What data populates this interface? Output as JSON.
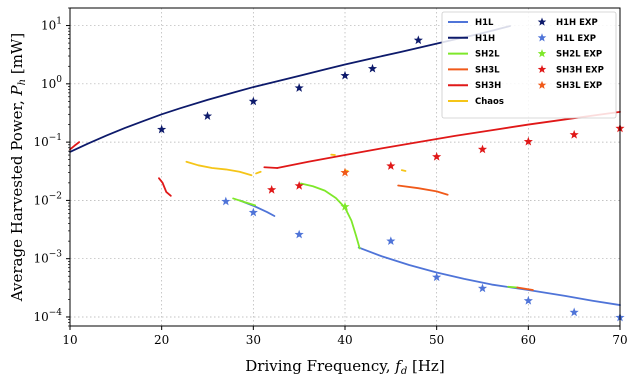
{
  "chart_data": {
    "type": "line",
    "title": "",
    "xlabel": "Driving Frequency, f_d [Hz]",
    "ylabel": "Average Harvested Power, P_h [mW]",
    "xlabel_parts": {
      "main": "Driving Frequency, ",
      "sym": "f",
      "sub": "d",
      "unit": " [Hz]"
    },
    "ylabel_parts": {
      "main": "Average Harvested Power, ",
      "sym": "P",
      "sub": "h",
      "unit": " [mW]"
    },
    "xlim": [
      10,
      70
    ],
    "ylim": [
      7e-05,
      20
    ],
    "yscale": "log",
    "grid": true,
    "legend_position": "top-right",
    "x_ticks": [
      10,
      20,
      30,
      40,
      50,
      60,
      70
    ],
    "x_tick_labels": [
      "10",
      "20",
      "30",
      "40",
      "50",
      "60",
      "70"
    ],
    "y_ticks": [
      0.0001,
      0.001,
      0.01,
      0.1,
      1,
      10
    ],
    "y_tick_labels": [
      {
        "base": "10",
        "exp": "−4"
      },
      {
        "base": "10",
        "exp": "−3"
      },
      {
        "base": "10",
        "exp": "−2"
      },
      {
        "base": "10",
        "exp": "−1"
      },
      {
        "base": "10",
        "exp": "0"
      },
      {
        "base": "10",
        "exp": "1"
      }
    ],
    "series": [
      {
        "name": "H1L",
        "kind": "line",
        "color": "#4f74d8",
        "points": [
          [
            41.5,
            0.00155
          ],
          [
            44,
            0.0011
          ],
          [
            47,
            0.00078
          ],
          [
            50,
            0.00058
          ],
          [
            53,
            0.00045
          ],
          [
            56,
            0.00036
          ],
          [
            60,
            0.00029
          ],
          [
            64,
            0.00023
          ],
          [
            67,
            0.00019
          ],
          [
            70,
            0.00016
          ]
        ]
      },
      {
        "name": "H1L",
        "kind": "line-segment",
        "color": "#4f74d8",
        "points": [
          [
            28.5,
            0.01
          ],
          [
            30,
            0.0081
          ],
          [
            31.5,
            0.0063
          ],
          [
            32.3,
            0.0054
          ]
        ]
      },
      {
        "name": "H1H",
        "kind": "line",
        "color": "#0d1a6b",
        "points": [
          [
            10,
            0.068
          ],
          [
            12,
            0.095
          ],
          [
            14,
            0.13
          ],
          [
            16,
            0.175
          ],
          [
            18,
            0.23
          ],
          [
            20,
            0.3
          ],
          [
            22,
            0.38
          ],
          [
            25,
            0.53
          ],
          [
            28,
            0.72
          ],
          [
            30,
            0.88
          ],
          [
            32,
            1.05
          ],
          [
            35,
            1.37
          ],
          [
            38,
            1.8
          ],
          [
            40,
            2.15
          ],
          [
            43,
            2.75
          ],
          [
            46,
            3.5
          ],
          [
            49,
            4.5
          ],
          [
            52,
            5.8
          ],
          [
            55,
            7.4
          ],
          [
            58,
            9.8
          ]
        ]
      },
      {
        "name": "SH2L",
        "kind": "line",
        "color": "#7ee82a",
        "points": [
          [
            35.2,
            0.0195
          ],
          [
            36.5,
            0.0175
          ],
          [
            37.8,
            0.0147
          ],
          [
            39,
            0.011
          ],
          [
            40,
            0.0075
          ],
          [
            40.7,
            0.0045
          ],
          [
            41.2,
            0.0025
          ],
          [
            41.6,
            0.0015
          ]
        ]
      },
      {
        "name": "SH2L",
        "kind": "line-segment",
        "color": "#7ee82a",
        "points": [
          [
            27.8,
            0.0108
          ],
          [
            29,
            0.0094
          ],
          [
            30.2,
            0.0082
          ]
        ]
      },
      {
        "name": "SH2L",
        "kind": "line-segment",
        "color": "#7ee82a",
        "points": [
          [
            57.8,
            0.00033
          ],
          [
            58.8,
            0.00032
          ]
        ]
      },
      {
        "name": "SH3L",
        "kind": "line-segment",
        "color": "#f05a1a",
        "points": [
          [
            45.8,
            0.018
          ],
          [
            48,
            0.0162
          ],
          [
            50,
            0.0143
          ],
          [
            51.2,
            0.0125
          ]
        ]
      },
      {
        "name": "SH3L",
        "kind": "line-segment",
        "color": "#f05a1a",
        "points": [
          [
            58.8,
            0.00032
          ],
          [
            60.5,
            0.00029
          ]
        ]
      },
      {
        "name": "SH3H",
        "kind": "line",
        "color": "#e01818",
        "points": [
          [
            32.6,
            0.036
          ],
          [
            36,
            0.046
          ],
          [
            40,
            0.06
          ],
          [
            44,
            0.078
          ],
          [
            48,
            0.1
          ],
          [
            52,
            0.128
          ],
          [
            56,
            0.16
          ],
          [
            60,
            0.2
          ],
          [
            64,
            0.245
          ],
          [
            67,
            0.285
          ],
          [
            70,
            0.33
          ]
        ]
      },
      {
        "name": "SH3H",
        "kind": "line-segment",
        "color": "#e01818",
        "points": [
          [
            31.2,
            0.037
          ],
          [
            32.6,
            0.036
          ]
        ]
      },
      {
        "name": "SH3H",
        "kind": "line-segment",
        "color": "#e01818",
        "points": [
          [
            19.7,
            0.024
          ],
          [
            20.1,
            0.02
          ],
          [
            20.5,
            0.014
          ],
          [
            21,
            0.012
          ]
        ]
      },
      {
        "name": "SH3H",
        "kind": "line-segment",
        "color": "#e01818",
        "points": [
          [
            10,
            0.075
          ],
          [
            10.5,
            0.087
          ],
          [
            11,
            0.1
          ]
        ]
      },
      {
        "name": "Chaos",
        "kind": "line",
        "color": "#f5c518",
        "points": [
          [
            22.7,
            0.046
          ],
          [
            24,
            0.04
          ],
          [
            25.5,
            0.036
          ],
          [
            27,
            0.034
          ],
          [
            28.5,
            0.031
          ],
          [
            29.8,
            0.027
          ]
        ]
      },
      {
        "name": "Chaos",
        "kind": "line-segment",
        "color": "#f5c518",
        "points": [
          [
            30.3,
            0.029
          ],
          [
            30.8,
            0.031
          ]
        ]
      },
      {
        "name": "Chaos",
        "kind": "line-segment",
        "color": "#f5c518",
        "points": [
          [
            38.5,
            0.061
          ],
          [
            38.9,
            0.06
          ]
        ]
      },
      {
        "name": "Chaos",
        "kind": "line-segment",
        "color": "#f5c518",
        "points": [
          [
            40,
            0.033
          ],
          [
            40.3,
            0.032
          ]
        ]
      },
      {
        "name": "Chaos",
        "kind": "line-segment",
        "color": "#f5c518",
        "points": [
          [
            46.2,
            0.033
          ],
          [
            46.6,
            0.032
          ]
        ]
      },
      {
        "name": "H1H EXP",
        "kind": "star",
        "color": "#0d1a6b",
        "points": [
          [
            20,
            0.165
          ],
          [
            25,
            0.28
          ],
          [
            30,
            0.5
          ],
          [
            35,
            0.85
          ],
          [
            40,
            1.38
          ],
          [
            43,
            1.82
          ],
          [
            48,
            5.6
          ]
        ]
      },
      {
        "name": "H1L EXP",
        "kind": "star",
        "color": "#4f74d8",
        "points": [
          [
            27,
            0.0096
          ],
          [
            30,
            0.0062
          ],
          [
            35,
            0.0026
          ],
          [
            45,
            0.002
          ],
          [
            50,
            0.00048
          ],
          [
            55,
            0.00031
          ],
          [
            60,
            0.00019
          ],
          [
            65,
            0.00012
          ],
          [
            70,
            9.8e-05
          ]
        ]
      },
      {
        "name": "SH2L EXP",
        "kind": "star",
        "color": "#7ee82a",
        "points": [
          [
            40,
            0.0078
          ]
        ]
      },
      {
        "name": "SH3H EXP",
        "kind": "star",
        "color": "#e01818",
        "points": [
          [
            32,
            0.0152
          ],
          [
            35,
            0.0178
          ],
          [
            45,
            0.039
          ],
          [
            50,
            0.056
          ],
          [
            55,
            0.075
          ],
          [
            60,
            0.102
          ],
          [
            65,
            0.134
          ],
          [
            70,
            0.172
          ]
        ]
      },
      {
        "name": "SH3L EXP",
        "kind": "star",
        "color": "#f05a1a",
        "points": [
          [
            40,
            0.03
          ]
        ]
      }
    ],
    "legend": {
      "col1": [
        {
          "label": "H1L",
          "color": "#4f74d8",
          "kind": "line"
        },
        {
          "label": "H1H",
          "color": "#0d1a6b",
          "kind": "line"
        },
        {
          "label": "SH2L",
          "color": "#7ee82a",
          "kind": "line"
        },
        {
          "label": "SH3L",
          "color": "#f05a1a",
          "kind": "line"
        },
        {
          "label": "SH3H",
          "color": "#e01818",
          "kind": "line"
        },
        {
          "label": "Chaos",
          "color": "#f5c518",
          "kind": "line"
        }
      ],
      "col2": [
        {
          "label": "H1H EXP",
          "color": "#0d1a6b",
          "kind": "star"
        },
        {
          "label": "H1L EXP",
          "color": "#4f74d8",
          "kind": "star"
        },
        {
          "label": "SH2L EXP",
          "color": "#7ee82a",
          "kind": "star"
        },
        {
          "label": "SH3H EXP",
          "color": "#e01818",
          "kind": "star"
        },
        {
          "label": "SH3L EXP",
          "color": "#f05a1a",
          "kind": "star"
        }
      ]
    }
  }
}
